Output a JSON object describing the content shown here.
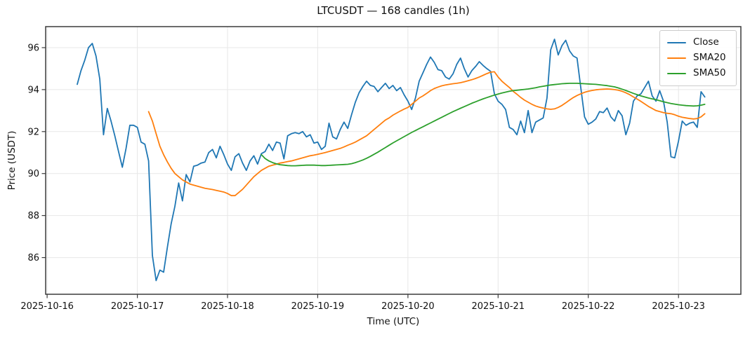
{
  "figure": {
    "title": "LTCUSDT — 168 candles (1h)",
    "xlabel": "Time (UTC)",
    "ylabel": "Price (USDT)",
    "background": "#ffffff",
    "spine_color": "#3b3b3b",
    "grid_color": "#e7e7e7",
    "text_color": "#111111"
  },
  "legend": {
    "position": "upper right",
    "entries": [
      {
        "label": "Close",
        "color": "#1f77b4"
      },
      {
        "label": "SMA20",
        "color": "#ff7f0e"
      },
      {
        "label": "SMA50",
        "color": "#2ca02c"
      }
    ]
  },
  "chart_data": {
    "type": "line",
    "title": "LTCUSDT — 168 candles (1h)",
    "xlabel": "Time (UTC)",
    "ylabel": "Price (USDT)",
    "x_unit": "hours elapsed since 2025-10-16 08:00 UTC, 1h per candle",
    "n_points": 168,
    "grid": true,
    "legend_position": "upper right",
    "ylim": [
      84.25,
      97.0
    ],
    "yticks": [
      86,
      88,
      90,
      92,
      94,
      96
    ],
    "xlim_hours": [
      -8.4,
      176.6
    ],
    "x_ticks": [
      {
        "hour": -8,
        "label": "2025-10-16"
      },
      {
        "hour": 16,
        "label": "2025-10-17"
      },
      {
        "hour": 40,
        "label": "2025-10-18"
      },
      {
        "hour": 64,
        "label": "2025-10-19"
      },
      {
        "hour": 88,
        "label": "2025-10-20"
      },
      {
        "hour": 112,
        "label": "2025-10-21"
      },
      {
        "hour": 136,
        "label": "2025-10-22"
      },
      {
        "hour": 160,
        "label": "2025-10-23"
      }
    ],
    "series": [
      {
        "name": "Close",
        "color": "#1f77b4",
        "start_index": 0,
        "values": [
          94.25,
          94.9,
          95.4,
          96.0,
          96.2,
          95.6,
          94.5,
          91.85,
          93.1,
          92.5,
          91.8,
          91.05,
          90.3,
          91.2,
          92.3,
          92.3,
          92.2,
          91.5,
          91.4,
          90.6,
          86.1,
          84.9,
          85.4,
          85.3,
          86.5,
          87.6,
          88.45,
          89.55,
          88.7,
          89.95,
          89.6,
          90.35,
          90.4,
          90.5,
          90.55,
          91.0,
          91.15,
          90.75,
          91.3,
          90.9,
          90.45,
          90.15,
          90.8,
          90.95,
          90.5,
          90.15,
          90.6,
          90.85,
          90.45,
          90.95,
          91.05,
          91.4,
          91.1,
          91.5,
          91.45,
          90.7,
          91.8,
          91.9,
          91.95,
          91.9,
          92.0,
          91.75,
          91.85,
          91.45,
          91.5,
          91.15,
          91.3,
          92.4,
          91.75,
          91.65,
          92.1,
          92.45,
          92.15,
          92.8,
          93.4,
          93.85,
          94.15,
          94.4,
          94.2,
          94.15,
          93.9,
          94.1,
          94.3,
          94.05,
          94.2,
          93.95,
          94.1,
          93.75,
          93.45,
          93.05,
          93.6,
          94.4,
          94.8,
          95.2,
          95.55,
          95.3,
          94.95,
          94.9,
          94.6,
          94.5,
          94.75,
          95.2,
          95.5,
          95.0,
          94.6,
          94.9,
          95.1,
          95.33,
          95.15,
          95.0,
          94.87,
          93.8,
          93.45,
          93.3,
          93.05,
          92.2,
          92.1,
          91.85,
          92.5,
          91.95,
          93.0,
          91.95,
          92.45,
          92.55,
          92.65,
          93.6,
          95.9,
          96.4,
          95.65,
          96.1,
          96.35,
          95.85,
          95.6,
          95.5,
          94.1,
          92.7,
          92.35,
          92.45,
          92.6,
          92.95,
          92.9,
          93.12,
          92.7,
          92.5,
          93.0,
          92.75,
          91.85,
          92.4,
          93.45,
          93.7,
          93.8,
          94.1,
          94.4,
          93.7,
          93.45,
          93.95,
          93.45,
          92.45,
          90.8,
          90.75,
          91.55,
          92.5,
          92.3,
          92.4,
          92.45,
          92.2,
          93.9,
          93.65
        ]
      },
      {
        "name": "SMA20",
        "color": "#ff7f0e",
        "start_index": 19,
        "values": [
          92.95,
          92.5,
          91.9,
          91.3,
          90.9,
          90.55,
          90.25,
          90.0,
          89.85,
          89.7,
          89.6,
          89.5,
          89.45,
          89.4,
          89.35,
          89.3,
          89.27,
          89.24,
          89.2,
          89.16,
          89.12,
          89.05,
          88.95,
          88.95,
          89.1,
          89.25,
          89.45,
          89.65,
          89.85,
          90.0,
          90.15,
          90.25,
          90.35,
          90.4,
          90.45,
          90.5,
          90.53,
          90.57,
          90.6,
          90.65,
          90.7,
          90.75,
          90.8,
          90.85,
          90.88,
          90.92,
          90.96,
          91.0,
          91.05,
          91.1,
          91.15,
          91.2,
          91.27,
          91.35,
          91.42,
          91.5,
          91.6,
          91.7,
          91.8,
          91.95,
          92.1,
          92.25,
          92.4,
          92.55,
          92.65,
          92.78,
          92.88,
          92.98,
          93.07,
          93.15,
          93.3,
          93.45,
          93.6,
          93.7,
          93.82,
          93.95,
          94.05,
          94.12,
          94.18,
          94.22,
          94.25,
          94.28,
          94.3,
          94.33,
          94.37,
          94.42,
          94.47,
          94.53,
          94.6,
          94.68,
          94.76,
          94.83,
          94.85,
          94.6,
          94.4,
          94.25,
          94.1,
          93.92,
          93.78,
          93.63,
          93.5,
          93.4,
          93.3,
          93.22,
          93.16,
          93.12,
          93.08,
          93.06,
          93.08,
          93.15,
          93.25,
          93.37,
          93.5,
          93.62,
          93.72,
          93.8,
          93.87,
          93.92,
          93.96,
          93.99,
          94.01,
          94.02,
          94.03,
          94.02,
          94.0,
          93.97,
          93.92,
          93.85,
          93.76,
          93.65,
          93.55,
          93.44,
          93.32,
          93.2,
          93.1,
          93.0,
          92.95,
          92.9,
          92.87,
          92.85,
          92.8,
          92.73,
          92.68,
          92.65,
          92.62,
          92.6,
          92.62,
          92.7,
          92.85
        ]
      },
      {
        "name": "SMA50",
        "color": "#2ca02c",
        "start_index": 49,
        "values": [
          90.9,
          90.72,
          90.6,
          90.52,
          90.46,
          90.42,
          90.4,
          90.38,
          90.37,
          90.37,
          90.38,
          90.39,
          90.4,
          90.4,
          90.4,
          90.39,
          90.38,
          90.38,
          90.39,
          90.4,
          90.41,
          90.42,
          90.43,
          90.44,
          90.47,
          90.52,
          90.58,
          90.65,
          90.73,
          90.82,
          90.92,
          91.02,
          91.13,
          91.24,
          91.35,
          91.46,
          91.56,
          91.66,
          91.76,
          91.86,
          91.96,
          92.05,
          92.14,
          92.23,
          92.32,
          92.41,
          92.5,
          92.59,
          92.68,
          92.77,
          92.86,
          92.95,
          93.03,
          93.11,
          93.19,
          93.27,
          93.35,
          93.42,
          93.49,
          93.56,
          93.62,
          93.68,
          93.74,
          93.79,
          93.84,
          93.88,
          93.92,
          93.95,
          93.97,
          93.99,
          94.01,
          94.03,
          94.06,
          94.09,
          94.13,
          94.16,
          94.19,
          94.22,
          94.24,
          94.26,
          94.28,
          94.29,
          94.3,
          94.3,
          94.3,
          94.29,
          94.28,
          94.27,
          94.26,
          94.25,
          94.23,
          94.21,
          94.19,
          94.16,
          94.13,
          94.08,
          94.02,
          93.96,
          93.89,
          93.82,
          93.76,
          93.7,
          93.65,
          93.6,
          93.56,
          93.52,
          93.47,
          93.42,
          93.38,
          93.34,
          93.31,
          93.28,
          93.26,
          93.24,
          93.23,
          93.22,
          93.23,
          93.26,
          93.3
        ]
      }
    ]
  }
}
